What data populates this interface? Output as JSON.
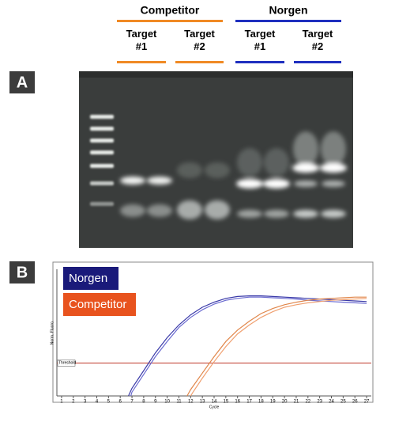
{
  "panel_a": {
    "label": "A",
    "groups": [
      {
        "name": "Competitor",
        "color": "#f08a24",
        "targets": [
          "Target\n#1",
          "Target\n#2"
        ]
      },
      {
        "name": "Norgen",
        "color": "#1f2fbf",
        "targets": [
          "Target\n#1",
          "Target\n#2"
        ]
      }
    ]
  },
  "panel_b": {
    "label": "B",
    "type": "line",
    "x_label": "Cycle",
    "y_label": "Norm. Fluoro.",
    "xlim": [
      0.6,
      27.4
    ],
    "ylim": [
      0,
      100
    ],
    "xticks": [
      1,
      2,
      3,
      4,
      5,
      6,
      7,
      8,
      9,
      10,
      11,
      12,
      13,
      14,
      15,
      16,
      17,
      18,
      19,
      20,
      21,
      22,
      23,
      24,
      25,
      26,
      27
    ],
    "threshold": {
      "label": "Threshold",
      "value": 26,
      "color": "#c0392b"
    },
    "legend": [
      {
        "name": "Norgen",
        "color": "#1a1a7a"
      },
      {
        "name": "Competitor",
        "color": "#e8531e"
      }
    ],
    "series": [
      {
        "group": 0,
        "color": "#3a3aa8",
        "x": [
          6.7,
          7,
          8,
          9,
          10,
          11,
          12,
          13,
          14,
          15,
          16,
          17,
          18,
          19,
          20,
          21,
          22,
          23,
          24,
          25,
          26,
          27
        ],
        "values": [
          0,
          6,
          20,
          34,
          46,
          56,
          64,
          70,
          74,
          77,
          78.5,
          79,
          79,
          78.5,
          78,
          77.5,
          77,
          76.5,
          76,
          75.5,
          75,
          74.5
        ]
      },
      {
        "group": 0,
        "color": "#6a6ad0",
        "x": [
          6.9,
          7,
          8,
          9,
          10,
          11,
          12,
          13,
          14,
          15,
          16,
          17,
          18,
          19,
          20,
          21,
          22,
          23,
          24,
          25,
          26,
          27
        ],
        "values": [
          0,
          3,
          17,
          31,
          43,
          54,
          62,
          68,
          72.5,
          75.5,
          77,
          78,
          78,
          77.5,
          77,
          76.5,
          75.5,
          75,
          74.5,
          74,
          73.5,
          73
        ]
      },
      {
        "group": 1,
        "color": "#e0864a",
        "x": [
          11.7,
          12,
          13,
          14,
          15,
          16,
          17,
          18,
          19,
          20,
          21,
          22,
          23,
          24,
          25,
          26,
          27
        ],
        "values": [
          0,
          5,
          18,
          31,
          43,
          52,
          59,
          65,
          69,
          72,
          74,
          75.5,
          76.5,
          77,
          77.5,
          78,
          78
        ]
      },
      {
        "group": 1,
        "color": "#f0a070",
        "x": [
          12.0,
          12.2,
          13,
          14,
          15,
          16,
          17,
          18,
          19,
          20,
          21,
          22,
          23,
          24,
          25,
          26,
          27
        ],
        "values": [
          0,
          3,
          14,
          27,
          39,
          49,
          56,
          62,
          66.5,
          70,
          72,
          73.5,
          74.5,
          75.5,
          76,
          76.5,
          77
        ]
      }
    ]
  }
}
